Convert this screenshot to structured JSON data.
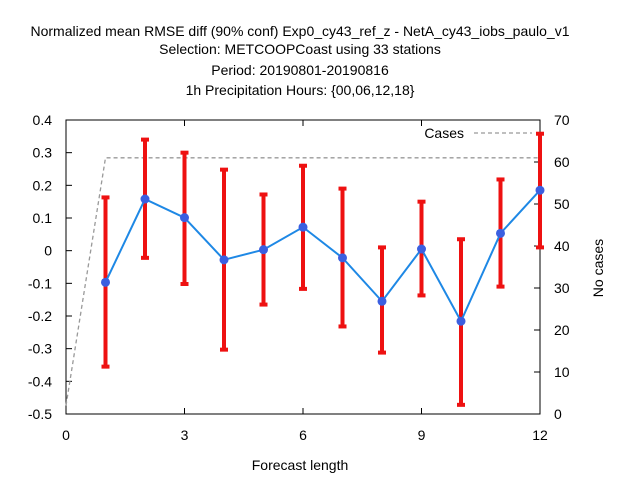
{
  "chart_data": {
    "type": "line",
    "title_lines": [
      "Normalized mean RMSE diff (90% conf) Exp0_cy43_ref_z - NetA_cy43_iobs_paulo_v1",
      "Selection: METCOOPCoast using     33 stations",
      "Period: 20190801-20190816",
      "1h Precipitation    Hours: {00,06,12,18}"
    ],
    "xlabel": "Forecast length",
    "ylabel": "",
    "y2label": "No cases",
    "xlim": [
      0,
      12
    ],
    "ylim": [
      -0.5,
      0.4
    ],
    "y2lim": [
      0,
      70
    ],
    "xticks": [
      0,
      3,
      6,
      9,
      12
    ],
    "yticks": [
      -0.5,
      -0.4,
      -0.3,
      -0.2,
      -0.1,
      0,
      0.1,
      0.2,
      0.3,
      0.4
    ],
    "ytick_labels": [
      "-0.5",
      "-0.4",
      "-0.3",
      "-0.2",
      "-0.1",
      "0",
      "0.1",
      "0.2",
      "0.3",
      "0.4"
    ],
    "y2ticks": [
      0,
      10,
      20,
      30,
      40,
      50,
      60,
      70
    ],
    "grid": false,
    "legend_position": "top-right",
    "legend": [
      "Cases"
    ],
    "series": [
      {
        "x": [
          1,
          2,
          3,
          4,
          5,
          6,
          7,
          8,
          9,
          10,
          11,
          12
        ],
        "values": [
          -0.097,
          0.158,
          0.101,
          -0.028,
          0.003,
          0.072,
          -0.022,
          -0.155,
          0.005,
          -0.216,
          0.053,
          0.185
        ],
        "err_low": [
          -0.355,
          -0.022,
          -0.102,
          -0.303,
          -0.165,
          -0.117,
          -0.232,
          -0.312,
          -0.137,
          -0.472,
          -0.11,
          0.01
        ],
        "err_high": [
          0.163,
          0.34,
          0.3,
          0.248,
          0.172,
          0.26,
          0.19,
          0.01,
          0.15,
          0.035,
          0.218,
          0.358
        ],
        "line_color": "#1e88e5",
        "marker_color": "#3b5fe0",
        "err_color": "#ee1111"
      },
      {
        "name": "Cases",
        "axis": "y2",
        "x": [
          0,
          1,
          2,
          3,
          4,
          5,
          6,
          7,
          8,
          9,
          10,
          11,
          12
        ],
        "values": [
          2,
          61,
          61,
          61,
          61,
          61,
          61,
          61,
          61,
          61,
          61,
          61,
          61
        ],
        "line_color": "#999999",
        "dashed": true
      }
    ]
  }
}
